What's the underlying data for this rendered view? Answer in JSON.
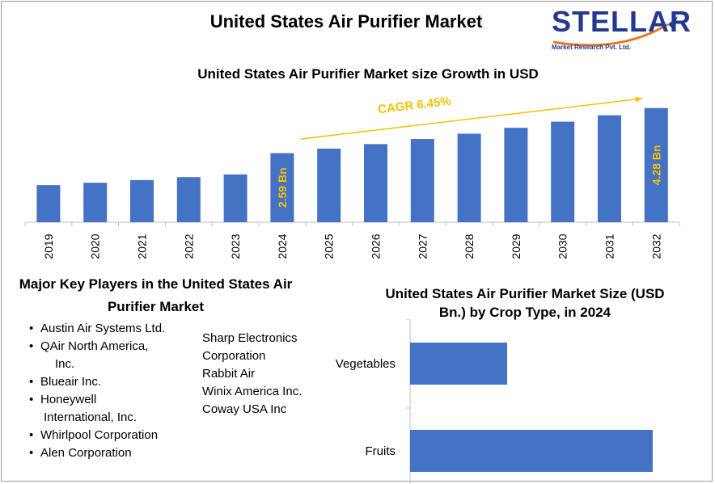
{
  "page_title": "United States Air Purifier Market",
  "logo": {
    "name": "STELLAR",
    "subtitle": "Market Research Pvt. Ltd."
  },
  "colors": {
    "bar": "#4472c4",
    "label": "#f5c100",
    "axis": "#bfbfbf"
  },
  "chart_data": [
    {
      "type": "bar",
      "title": "United States Air Purifier Market size Growth in USD",
      "categories": [
        "2019",
        "2020",
        "2021",
        "2022",
        "2023",
        "2024",
        "2025",
        "2026",
        "2027",
        "2028",
        "2029",
        "2030",
        "2031",
        "2032"
      ],
      "values": [
        1.39,
        1.48,
        1.58,
        1.69,
        1.79,
        2.59,
        2.76,
        2.93,
        3.12,
        3.32,
        3.54,
        3.77,
        4.01,
        4.28
      ],
      "data_labels": {
        "2024": "2.59 Bn",
        "2032": "4.28 Bn"
      },
      "annotation": "CAGR 6.45%",
      "xlabel": "",
      "ylabel": "",
      "grid": false
    },
    {
      "type": "bar",
      "orientation": "horizontal",
      "title": "United States Air Purifier Market Size (USD Bn.) by Crop Type, in 2024",
      "categories": [
        "Vegetables",
        "Fruits"
      ],
      "values": [
        0.6,
        1.5
      ],
      "xlabel": "",
      "ylabel": "",
      "grid": false
    }
  ],
  "players": {
    "title": "Major Key Players in the United States Air Purifier Market",
    "list": [
      [
        "Austin Air Systems Ltd."
      ],
      [
        "QAir North America,",
        "Inc."
      ],
      [
        "Blueair Inc."
      ],
      [
        "Honeywell",
        "International, Inc."
      ],
      [
        "Whirlpool Corporation"
      ],
      [
        "Alen Corporation"
      ]
    ],
    "list2": [
      "Sharp Electronics",
      "Corporation",
      "Rabbit Air",
      "Winix America Inc.",
      "Coway USA Inc"
    ]
  }
}
